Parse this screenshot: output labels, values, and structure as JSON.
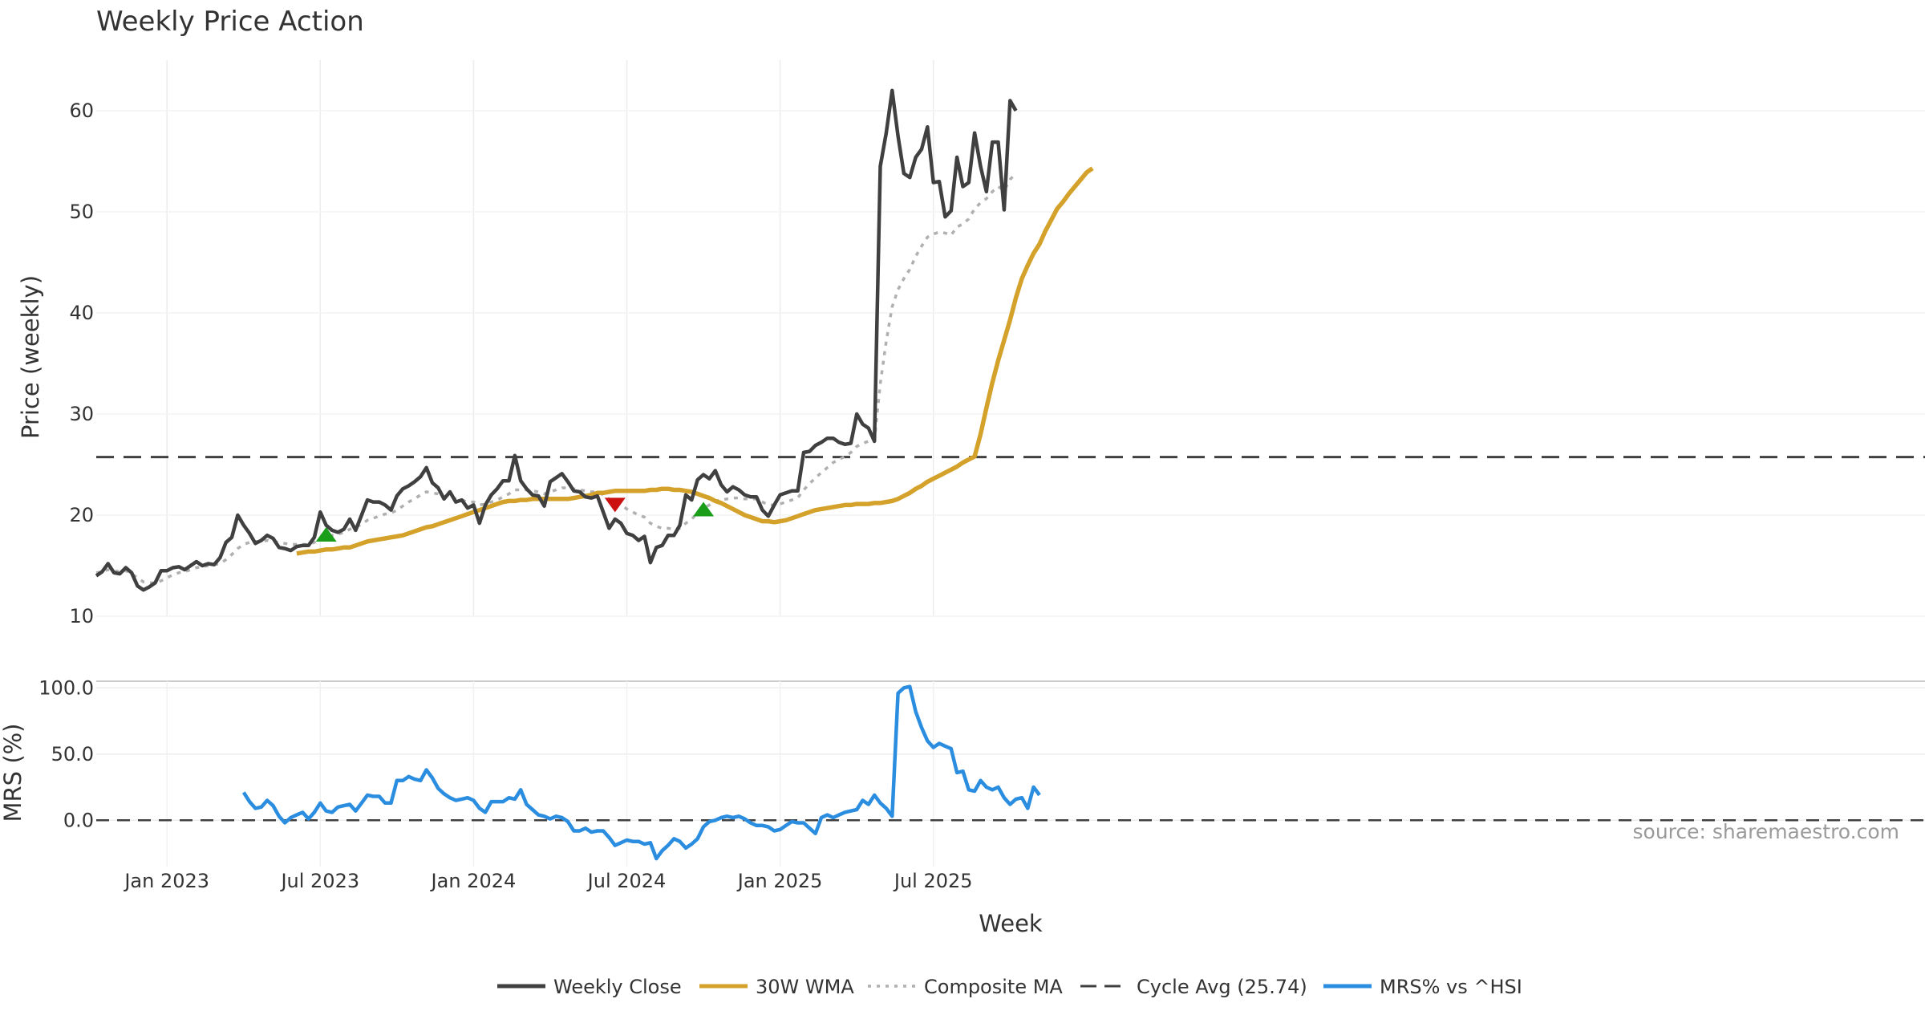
{
  "chart_data": {
    "type": "line",
    "title": "Weekly Price Action",
    "xlabel": "Week",
    "x_ticks": [
      "Jan 2023",
      "Jul 2023",
      "Jan 2024",
      "Jul 2024",
      "Jan 2025",
      "Jul 2025"
    ],
    "source_text": "source: sharemaestro.com",
    "price_panel": {
      "ylabel": "Price (weekly)",
      "ylim": [
        10,
        65
      ],
      "y_ticks": [
        "10",
        "20",
        "30",
        "40",
        "50",
        "60"
      ],
      "cycle_avg": 25.74,
      "weekly_close": [
        14.0,
        14.4,
        15.2,
        14.3,
        14.2,
        14.8,
        14.3,
        13.0,
        12.6,
        12.9,
        13.3,
        14.5,
        14.5,
        14.8,
        14.9,
        14.6,
        15.0,
        15.4,
        15.0,
        15.2,
        15.1,
        15.8,
        17.3,
        17.8,
        20.0,
        19.0,
        18.2,
        17.2,
        17.5,
        18.0,
        17.7,
        16.8,
        16.7,
        16.5,
        16.9,
        17.0,
        17.0,
        17.8,
        20.3,
        19.0,
        18.5,
        18.3,
        18.6,
        19.6,
        18.5,
        20.0,
        21.5,
        21.3,
        21.3,
        21.0,
        20.5,
        21.9,
        22.6,
        22.9,
        23.3,
        23.8,
        24.7,
        23.2,
        22.7,
        21.6,
        22.3,
        21.3,
        21.5,
        20.7,
        21.0,
        19.2,
        21.0,
        22.0,
        22.6,
        23.4,
        23.4,
        25.9,
        23.4,
        22.6,
        22.0,
        21.9,
        20.9,
        23.3,
        23.7,
        24.1,
        23.3,
        22.4,
        22.3,
        21.8,
        21.7,
        21.9,
        20.3,
        18.7,
        19.6,
        19.2,
        18.2,
        18.0,
        17.5,
        17.9,
        15.3,
        16.8,
        17.0,
        18.0,
        18.0,
        19.0,
        22.0,
        21.5,
        23.5,
        24.0,
        23.6,
        24.4,
        23.0,
        22.3,
        22.8,
        22.5,
        22.0,
        21.8,
        21.8,
        20.5,
        19.9,
        21.0,
        22.0,
        22.2,
        22.4,
        22.4,
        26.2,
        26.3,
        26.9,
        27.2,
        27.6,
        27.6,
        27.2,
        27.0,
        27.1,
        30.0,
        29.0,
        28.6,
        27.3,
        54.5,
        57.8,
        62.0,
        57.5,
        53.8,
        53.4,
        55.4,
        56.2,
        58.4,
        52.9,
        53.0,
        49.5,
        50.1,
        55.4,
        52.5,
        52.9,
        57.8,
        54.5,
        52.0,
        56.9,
        56.9,
        50.2,
        61.0,
        60.0
      ],
      "wma_30": {
        "start_index": 34,
        "values": [
          16.2,
          16.3,
          16.4,
          16.4,
          16.5,
          16.6,
          16.6,
          16.7,
          16.8,
          16.8,
          17.0,
          17.2,
          17.4,
          17.5,
          17.6,
          17.7,
          17.8,
          17.9,
          18.0,
          18.2,
          18.4,
          18.6,
          18.8,
          18.9,
          19.1,
          19.3,
          19.5,
          19.7,
          19.9,
          20.1,
          20.3,
          20.5,
          20.7,
          20.9,
          21.1,
          21.3,
          21.4,
          21.4,
          21.5,
          21.5,
          21.6,
          21.6,
          21.6,
          21.6,
          21.6,
          21.6,
          21.6,
          21.7,
          21.8,
          21.9,
          22.0,
          22.2,
          22.2,
          22.3,
          22.4,
          22.4,
          22.4,
          22.4,
          22.4,
          22.4,
          22.5,
          22.5,
          22.6,
          22.6,
          22.5,
          22.5,
          22.4,
          22.3,
          22.1,
          21.9,
          21.7,
          21.4,
          21.2,
          20.9,
          20.6,
          20.3,
          20.0,
          19.8,
          19.6,
          19.4,
          19.4,
          19.3,
          19.4,
          19.5,
          19.7,
          19.9,
          20.1,
          20.3,
          20.5,
          20.6,
          20.7,
          20.8,
          20.9,
          21.0,
          21.0,
          21.1,
          21.1,
          21.1,
          21.2,
          21.2,
          21.3,
          21.4,
          21.6,
          21.9,
          22.2,
          22.6,
          22.9,
          23.3,
          23.6,
          23.9,
          24.2,
          24.5,
          24.8,
          25.2,
          25.5,
          25.8,
          28.0,
          30.6,
          33.1,
          35.3,
          37.3,
          39.3,
          41.5,
          43.4,
          44.7,
          45.9,
          46.8,
          48.1,
          49.2,
          50.3,
          51.0,
          51.8,
          52.5,
          53.2,
          53.9,
          54.3
        ]
      },
      "composite_ma": [
        14.3,
        14.4,
        14.6,
        14.5,
        14.4,
        14.5,
        14.2,
        13.8,
        13.4,
        13.3,
        13.3,
        13.5,
        13.8,
        14.1,
        14.3,
        14.4,
        14.6,
        14.8,
        14.9,
        15.0,
        15.1,
        15.2,
        15.6,
        16.1,
        16.7,
        17.1,
        17.3,
        17.4,
        17.4,
        17.5,
        17.4,
        17.3,
        17.2,
        17.1,
        17.1,
        17.1,
        17.1,
        17.3,
        17.7,
        17.9,
        18.0,
        18.1,
        18.3,
        18.6,
        18.8,
        19.1,
        19.5,
        19.7,
        19.9,
        20.1,
        20.2,
        20.5,
        20.9,
        21.3,
        21.6,
        22.0,
        22.3,
        22.2,
        22.1,
        21.8,
        21.8,
        21.6,
        21.5,
        21.3,
        21.3,
        21.0,
        21.1,
        21.3,
        21.5,
        21.8,
        22.1,
        22.5,
        22.5,
        22.5,
        22.4,
        22.3,
        22.1,
        22.3,
        22.5,
        22.7,
        22.7,
        22.6,
        22.5,
        22.4,
        22.3,
        22.3,
        22.0,
        21.6,
        21.3,
        21.0,
        20.6,
        20.3,
        20.0,
        19.8,
        19.2,
        18.9,
        18.7,
        18.7,
        18.6,
        18.7,
        19.2,
        19.6,
        20.2,
        20.7,
        21.0,
        21.4,
        21.5,
        21.6,
        21.7,
        21.7,
        21.6,
        21.6,
        21.6,
        21.3,
        21.0,
        21.0,
        21.1,
        21.3,
        21.5,
        21.7,
        22.5,
        23.1,
        23.7,
        24.2,
        24.7,
        25.2,
        25.5,
        25.8,
        26.2,
        26.8,
        27.1,
        27.3,
        27.4,
        33.0,
        37.2,
        40.6,
        42.3,
        43.4,
        44.3,
        45.6,
        46.6,
        47.5,
        47.8,
        48.0,
        47.9,
        47.7,
        48.5,
        48.8,
        49.3,
        50.3,
        50.9,
        51.3,
        52.0,
        52.5,
        52.1,
        53.2,
        53.8
      ],
      "signals": [
        {
          "kind": "buy",
          "index": 39,
          "value": 18.1,
          "color": "#1a9e1a"
        },
        {
          "kind": "sell",
          "index": 88,
          "value": 21.0,
          "color": "#cc1111"
        },
        {
          "kind": "buy",
          "index": 103,
          "value": 20.6,
          "color": "#1a9e1a"
        }
      ]
    },
    "mrs_panel": {
      "ylabel": "MRS (%)",
      "ylim": [
        -35,
        105
      ],
      "y_ticks": [
        "100.0",
        "50.0",
        "0.0"
      ],
      "start_index": 25,
      "values": [
        21,
        14,
        9,
        10,
        15,
        11,
        3,
        -2,
        2,
        4,
        6,
        1,
        6,
        13,
        7,
        6,
        10,
        11,
        12,
        7,
        13,
        19,
        18,
        18,
        13,
        13,
        30,
        30,
        33,
        31,
        30,
        38,
        32,
        24,
        20,
        17,
        15,
        16,
        17,
        15,
        9,
        6,
        14,
        14,
        14,
        17,
        16,
        23,
        12,
        8,
        4,
        3,
        1,
        3,
        2,
        -1,
        -8,
        -8,
        -6,
        -9,
        -8,
        -8,
        -13,
        -19,
        -17,
        -15,
        -16,
        -16,
        -18,
        -17,
        -29,
        -23,
        -19,
        -14,
        -16,
        -21,
        -18,
        -14,
        -5,
        -1,
        0,
        2,
        3,
        2,
        3,
        1,
        -2,
        -4,
        -4,
        -5,
        -8,
        -7,
        -4,
        -1,
        -2,
        -2,
        -6,
        -10,
        2,
        4,
        2,
        4,
        6,
        7,
        8,
        15,
        12,
        19,
        13,
        9,
        3,
        96,
        100,
        101,
        82,
        70,
        60,
        55,
        58,
        56,
        54,
        36,
        37,
        23,
        22,
        30,
        25,
        23,
        25,
        17,
        12,
        16,
        17,
        9,
        25,
        19
      ]
    },
    "series_colors": {
      "weekly_close": "#404040",
      "wma_30": "#d4a22a",
      "composite_ma": "#b0b0b0",
      "cycle_avg": "#404040",
      "mrs": "#2b8de0"
    },
    "legend": [
      {
        "key": "weekly_close",
        "label": "Weekly Close",
        "style": "solid"
      },
      {
        "key": "wma_30",
        "label": "30W WMA",
        "style": "solid"
      },
      {
        "key": "composite_ma",
        "label": "Composite MA",
        "style": "dotted"
      },
      {
        "key": "cycle_avg",
        "label": "Cycle Avg (25.74)",
        "style": "dashed"
      },
      {
        "key": "mrs",
        "label": "MRS% vs ^HSI",
        "style": "solid"
      }
    ]
  }
}
